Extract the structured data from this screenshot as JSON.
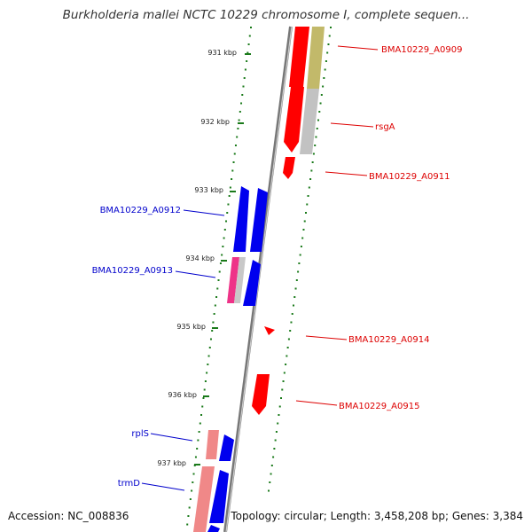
{
  "title": "Burkholderia mallei NCTC 10229 chromosome I, complete sequen...",
  "footer": {
    "accession": "Accession: NC_008836",
    "summary": "Topology: circular; Length: 3,458,208 bp; Genes: 3,384"
  },
  "ticks": [
    {
      "label": "931 kbp"
    },
    {
      "label": "932 kbp"
    },
    {
      "label": "933 kbp"
    },
    {
      "label": "934 kbp"
    },
    {
      "label": "935 kbp"
    },
    {
      "label": "936 kbp"
    },
    {
      "label": "937 kbp"
    }
  ],
  "gene_labels": [
    {
      "name": "BMA10229_A0909",
      "color": "#dd0000"
    },
    {
      "name": "rsgA",
      "color": "#dd0000"
    },
    {
      "name": "BMA10229_A0911",
      "color": "#dd0000"
    },
    {
      "name": "BMA10229_A0912",
      "color": "#0000cc"
    },
    {
      "name": "BMA10229_A0913",
      "color": "#0000cc"
    },
    {
      "name": "BMA10229_A0914",
      "color": "#dd0000"
    },
    {
      "name": "BMA10229_A0915",
      "color": "#dd0000"
    },
    {
      "name": "rplS",
      "color": "#0000cc"
    },
    {
      "name": "trmD",
      "color": "#0000cc"
    }
  ],
  "colors": {
    "forward_cds": "#ff0000",
    "reverse_cds": "#0000ee",
    "rna": "#ff66aa",
    "olive_feature": "#c8c07a",
    "gray_feature": "#c0c0c0",
    "pink_feature": "#f08888",
    "backbone": "#888888",
    "gc_dots": "#1a7a1a"
  }
}
